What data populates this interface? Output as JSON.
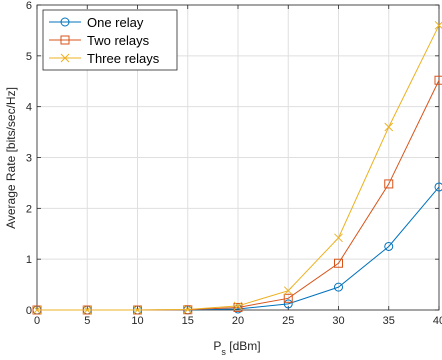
{
  "chart_data": {
    "type": "line",
    "title": "",
    "xlabel_main": "P",
    "xlabel_sub": "s",
    "xlabel_unit": " [dBm]",
    "ylabel": "Average Rate [bits/sec/Hz]",
    "xlim": [
      0,
      40
    ],
    "ylim": [
      0,
      6
    ],
    "xticks": [
      0,
      5,
      10,
      15,
      20,
      25,
      30,
      35,
      40
    ],
    "yticks": [
      0,
      1,
      2,
      3,
      4,
      5,
      6
    ],
    "grid": true,
    "legend_position": "top-left",
    "x": [
      0,
      5,
      10,
      15,
      20,
      25,
      30,
      35,
      40
    ],
    "series": [
      {
        "name": "One relay",
        "color": "#0072BD",
        "marker": "circle",
        "values": [
          0,
          0,
          0,
          0.002,
          0.02,
          0.12,
          0.45,
          1.25,
          2.42
        ]
      },
      {
        "name": "Two relays",
        "color": "#D95319",
        "marker": "square",
        "values": [
          0,
          0,
          0,
          0.005,
          0.05,
          0.23,
          0.92,
          2.48,
          4.52
        ]
      },
      {
        "name": "Three relays",
        "color": "#EDB120",
        "marker": "x",
        "values": [
          0,
          0,
          0,
          0.01,
          0.08,
          0.38,
          1.42,
          3.6,
          5.6
        ]
      }
    ]
  }
}
